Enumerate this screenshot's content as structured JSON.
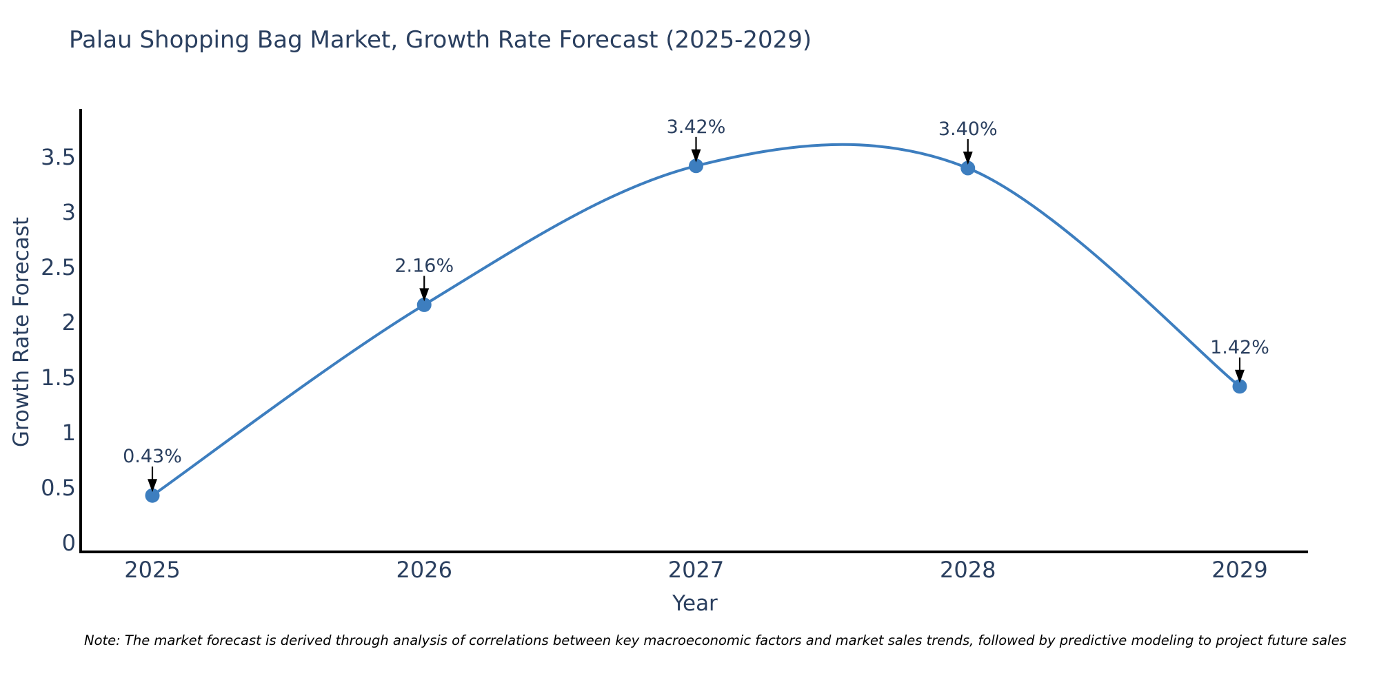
{
  "page": {
    "background": "#ffffff"
  },
  "note": "Note: The market forecast is derived through analysis of correlations between key macroeconomic factors and market sales trends, followed by predictive modeling to project future sales",
  "chart_data": {
    "type": "line",
    "title": "Palau Shopping Bag Market, Growth Rate Forecast (2025-2029)",
    "xlabel": "Year",
    "ylabel": "Growth Rate Forecast",
    "categories": [
      "2025",
      "2026",
      "2027",
      "2028",
      "2029"
    ],
    "series": [
      {
        "name": "Growth Rate Forecast",
        "values": [
          0.43,
          2.16,
          3.42,
          3.4,
          1.42
        ]
      }
    ],
    "point_labels": [
      "0.43%",
      "2.16%",
      "3.42%",
      "3.40%",
      "1.42%"
    ],
    "yticks": [
      "0",
      "0.5",
      "1",
      "1.5",
      "2",
      "2.5",
      "3",
      "3.5"
    ],
    "ylim": [
      -0.08,
      3.94
    ],
    "grid": false,
    "legend": "none",
    "line_shape": "spline",
    "annotations": "arrow-down-to-point",
    "colors": {
      "line": "#3d7ebf",
      "marker": "#3d7ebf",
      "axis": "#000000",
      "text": "#2a3f5f",
      "annotation": "#2a3f5f",
      "arrow": "#000000",
      "note": "#000000"
    }
  }
}
